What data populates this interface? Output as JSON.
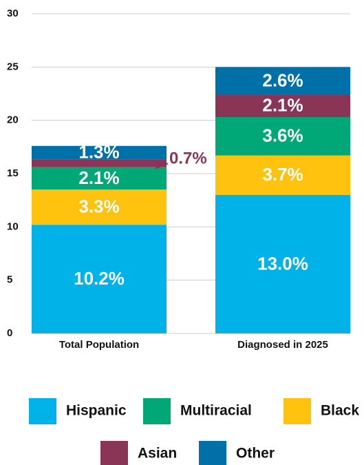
{
  "chart_data": {
    "type": "stacked_bar",
    "categories": [
      "Total Population",
      "Diagnosed in 2025"
    ],
    "series": [
      {
        "name": "Hispanic",
        "color": "#00b2e8",
        "values": [
          10.2,
          13.0
        ],
        "value_labels": [
          "10.2%",
          "13.0%"
        ]
      },
      {
        "name": "Multiracial",
        "color": "#00a878",
        "values": [
          2.1,
          3.6
        ],
        "value_labels": [
          "2.1%",
          "3.6%"
        ]
      },
      {
        "name": "Black",
        "color": "#ffc20e",
        "values": [
          3.3,
          3.7
        ],
        "value_labels": [
          "3.3%",
          "3.7%"
        ]
      },
      {
        "name": "Asian",
        "color": "#8a3556",
        "values": [
          0.7,
          2.1
        ],
        "value_labels": [
          "0.7%",
          "2.1%"
        ]
      },
      {
        "name": "Other",
        "color": "#0070a8",
        "values": [
          1.3,
          2.6
        ],
        "value_labels": [
          "1.3%",
          "2.6%"
        ]
      }
    ],
    "ylim": [
      0,
      30
    ],
    "yticks": [
      0,
      5,
      10,
      15,
      20,
      25,
      30
    ],
    "grid": true
  }
}
